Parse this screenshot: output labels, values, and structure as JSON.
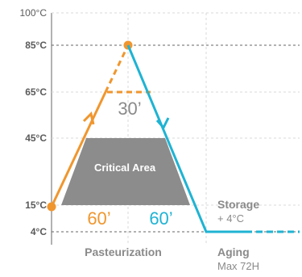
{
  "axis": {
    "ticks": [
      "100°C",
      "85°C",
      "65°C",
      "45°C",
      "15°C",
      "4°C"
    ]
  },
  "labels": {
    "critical_area": "Critical Area",
    "duration_heat": "60’",
    "duration_cool": "60’",
    "duration_hold": "30’",
    "storage": "Storage",
    "storage_temp": "+ 4°C",
    "pasteurization": "Pasteurization",
    "aging": "Aging",
    "aging_duration": "Max 72H"
  },
  "colors": {
    "heating": "#f0962e",
    "cooling": "#1fb3d3",
    "critical": "#8c8c8c",
    "grid": "#d0d0d0",
    "axis": "#555555"
  }
}
